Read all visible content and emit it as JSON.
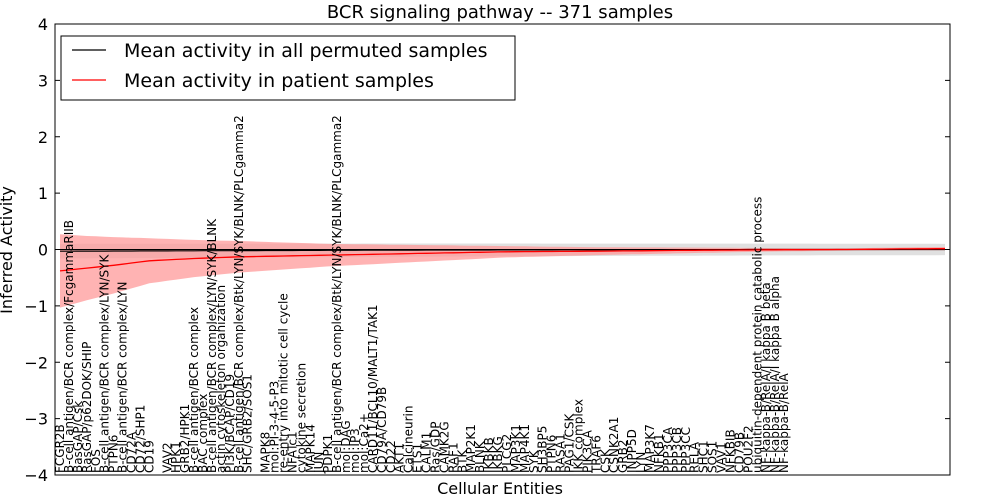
{
  "chart_data": {
    "type": "line",
    "title": "BCR signaling pathway -- 371 samples",
    "xlabel": "Cellular Entities",
    "ylabel": "Inferred Activity",
    "ylim": [
      -4,
      4
    ],
    "yticks": [
      "4",
      "3",
      "2",
      "1",
      "0",
      "−1",
      "−2",
      "−3",
      "−4"
    ],
    "ytick_values": [
      4,
      3,
      2,
      1,
      0,
      -1,
      -2,
      -3,
      -4
    ],
    "x_count": 100,
    "legend": {
      "position": "top-left",
      "entries": [
        {
          "label": "Mean activity in all permuted samples",
          "color": "#000000"
        },
        {
          "label": "Mean activity in patient samples",
          "color": "#ff0000"
        }
      ]
    },
    "colors": {
      "permuted": "#000000",
      "patient": "#ff0000",
      "patient_band": "#ff9999",
      "permuted_band": "#cccccc"
    },
    "patient_mean_anchors": [
      [
        0,
        -0.38
      ],
      [
        3,
        -0.33
      ],
      [
        6,
        -0.28
      ],
      [
        10,
        -0.2
      ],
      [
        15,
        -0.16
      ],
      [
        20,
        -0.13
      ],
      [
        30,
        -0.1
      ],
      [
        40,
        -0.07
      ],
      [
        50,
        -0.04
      ],
      [
        60,
        -0.03
      ],
      [
        70,
        -0.015
      ],
      [
        80,
        -0.005
      ],
      [
        88,
        0.0
      ],
      [
        94,
        0.01
      ],
      [
        99,
        0.015
      ]
    ],
    "patient_band_anchors": [
      [
        0,
        0.65
      ],
      [
        3,
        0.57
      ],
      [
        6,
        0.5
      ],
      [
        10,
        0.4
      ],
      [
        15,
        0.33
      ],
      [
        20,
        0.28
      ],
      [
        30,
        0.2
      ],
      [
        40,
        0.15
      ],
      [
        50,
        0.1
      ],
      [
        60,
        0.07
      ],
      [
        70,
        0.05
      ],
      [
        80,
        0.03
      ],
      [
        88,
        0.02
      ],
      [
        94,
        0.025
      ],
      [
        99,
        0.03
      ]
    ],
    "permuted_mean_anchors": [
      [
        0,
        -0.03
      ],
      [
        20,
        -0.02
      ],
      [
        40,
        -0.01
      ],
      [
        60,
        -0.005
      ],
      [
        80,
        0.0
      ],
      [
        99,
        0.0
      ]
    ],
    "permuted_band_anchors": [
      [
        0,
        0.13
      ],
      [
        30,
        0.12
      ],
      [
        60,
        0.11
      ],
      [
        99,
        0.1
      ]
    ],
    "entity_labels": [
      {
        "i": 0,
        "label": "FCGR2B"
      },
      {
        "i": 1,
        "label": "B-cell antigen/BCR complex/FcgammaRIIB"
      },
      {
        "i": 2,
        "label": "BasGAP/Csk"
      },
      {
        "i": 3,
        "label": "RasGAP/p62DOK/SHIP"
      },
      {
        "i": 4,
        "label": "FOS"
      },
      {
        "i": 5,
        "label": "B-cell antigen/BCR complex/LYN/SYK"
      },
      {
        "i": 6,
        "label": "PTPN6"
      },
      {
        "i": 7,
        "label": "B-cell antigen/BCR complex/LYN"
      },
      {
        "i": 8,
        "label": "CD72A"
      },
      {
        "i": 9,
        "label": "CD72/SHP1"
      },
      {
        "i": 10,
        "label": "CD19"
      },
      {
        "i": 12,
        "label": "VAV2"
      },
      {
        "i": 13,
        "label": "HPK1"
      },
      {
        "i": 14,
        "label": "GRB2/HPK1"
      },
      {
        "i": 15,
        "label": "B-cell antigen/BCR complex"
      },
      {
        "i": 16,
        "label": "BAC complex"
      },
      {
        "i": 17,
        "label": "B-cell antigen/BCR complex/LYN/SYK/BLNK"
      },
      {
        "i": 18,
        "label": "actin cytoskeleton organization"
      },
      {
        "i": 19,
        "label": "PI3K/BCAP/CD19"
      },
      {
        "i": 20,
        "label": "B-cell antigen/BCR complex/Btk/LYN/SYK/BLNK/PLCgamma2"
      },
      {
        "i": 21,
        "label": "SHC/GRB2/SOS1"
      },
      {
        "i": 23,
        "label": "MAPK8"
      },
      {
        "i": 24,
        "label": "mol:PI-3-4-5-P3"
      },
      {
        "i": 25,
        "label": "re-entry into mitotic cell cycle"
      },
      {
        "i": 26,
        "label": "NFATc1"
      },
      {
        "i": 27,
        "label": "cytokine secretion"
      },
      {
        "i": 28,
        "label": "MAPK14"
      },
      {
        "i": 29,
        "label": "JUN"
      },
      {
        "i": 30,
        "label": "PDPK1"
      },
      {
        "i": 31,
        "label": "B-cell antigen/BCR complex/Btk/LYN/SYK/BLNK/PLCgamma2"
      },
      {
        "i": 32,
        "label": "mol:DAG"
      },
      {
        "i": 33,
        "label": "mol:IP3"
      },
      {
        "i": 34,
        "label": "mol:Ca2+"
      },
      {
        "i": 35,
        "label": "CARD11/BCL10/MALT1/TAK1"
      },
      {
        "i": 36,
        "label": "CD79A/CD79B"
      },
      {
        "i": 37,
        "label": "CD22"
      },
      {
        "i": 38,
        "label": "AKT1"
      },
      {
        "i": 39,
        "label": "Calcineurin"
      },
      {
        "i": 40,
        "label": "ETS1"
      },
      {
        "i": 41,
        "label": "CALM1"
      },
      {
        "i": 42,
        "label": "Ras/GDP"
      },
      {
        "i": 43,
        "label": "CAMK2G"
      },
      {
        "i": 44,
        "label": "RAF1"
      },
      {
        "i": 45,
        "label": "BTK"
      },
      {
        "i": 46,
        "label": "MAP2K1"
      },
      {
        "i": 47,
        "label": "BLNK"
      },
      {
        "i": 48,
        "label": "IKBKB"
      },
      {
        "i": 49,
        "label": "IKBKG"
      },
      {
        "i": 50,
        "label": "PLCG2"
      },
      {
        "i": 51,
        "label": "MAP3K1"
      },
      {
        "i": 52,
        "label": "MAP4K1"
      },
      {
        "i": 53,
        "label": "SYK"
      },
      {
        "i": 54,
        "label": "SH3BP5"
      },
      {
        "i": 55,
        "label": "PTPN6"
      },
      {
        "i": 56,
        "label": "RASA1"
      },
      {
        "i": 57,
        "label": "PAG1/CSK"
      },
      {
        "i": 58,
        "label": "IKK complex"
      },
      {
        "i": 59,
        "label": "PIK3CA"
      },
      {
        "i": 60,
        "label": "TRAF6"
      },
      {
        "i": 61,
        "label": "CSK"
      },
      {
        "i": 62,
        "label": "CSNK2A1"
      },
      {
        "i": 63,
        "label": "GRB2"
      },
      {
        "i": 64,
        "label": "INPP5D"
      },
      {
        "i": 65,
        "label": "LYN"
      },
      {
        "i": 66,
        "label": "MAP3K7"
      },
      {
        "i": 67,
        "label": "NFKB1"
      },
      {
        "i": 68,
        "label": "PPP3CA"
      },
      {
        "i": 69,
        "label": "PPP3CB"
      },
      {
        "i": 70,
        "label": "PPP3CC"
      },
      {
        "i": 71,
        "label": "RELA"
      },
      {
        "i": 72,
        "label": "SHC1"
      },
      {
        "i": 73,
        "label": "SOS1"
      },
      {
        "i": 74,
        "label": "VAV1"
      },
      {
        "i": 75,
        "label": "NFKBIB"
      },
      {
        "i": 76,
        "label": "CD79B"
      },
      {
        "i": 77,
        "label": "POU2F2"
      },
      {
        "i": 78,
        "label": "ubiquitin-dependent protein catabolic process"
      },
      {
        "i": 79,
        "label": "NF-kappa-B/RelA/I kappa B beta"
      },
      {
        "i": 80,
        "label": "NF-kappa-B/RelA/I kappa B alpha"
      },
      {
        "i": 81,
        "label": "NF-kappa-B/RelA"
      }
    ]
  }
}
